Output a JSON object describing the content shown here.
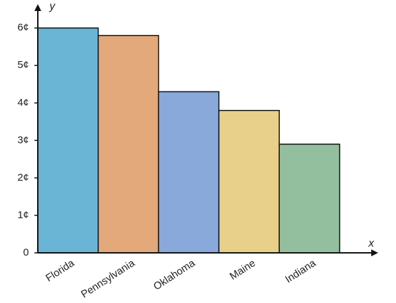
{
  "chart_data": {
    "type": "bar",
    "categories": [
      "Florida",
      "Pennsylvania",
      "Oklahoma",
      "Maine",
      "Indiana"
    ],
    "values": [
      6,
      5.8,
      4.3,
      3.8,
      2.9
    ],
    "colors": [
      "#6ab4d6",
      "#e3a97a",
      "#8aa9db",
      "#e8cf8a",
      "#93bf9e"
    ],
    "ylim": [
      0,
      6.6
    ],
    "yticks": [
      0,
      {
        "value": 1,
        "label": "1¢"
      },
      {
        "value": 2,
        "label": "2¢"
      },
      {
        "value": 3,
        "label": "3¢"
      },
      {
        "value": 4,
        "label": "4¢"
      },
      {
        "value": 5,
        "label": "5¢"
      },
      {
        "value": 6,
        "label": "6¢"
      }
    ],
    "xlabel": "x",
    "ylabel": "y"
  }
}
